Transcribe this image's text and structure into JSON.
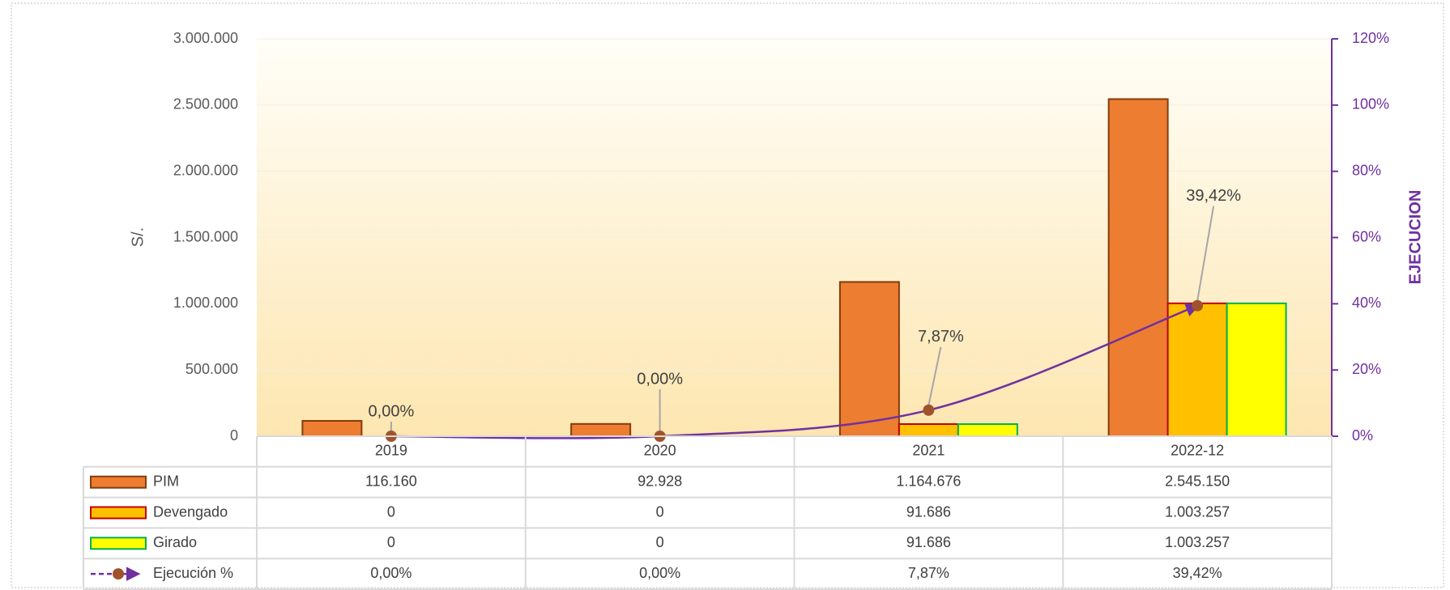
{
  "chart_data": {
    "type": "bar",
    "y_label": "S/.",
    "y2_label": "EJECUCION",
    "categories": [
      "2019",
      "2020",
      "2021",
      "2022-12"
    ],
    "series": [
      {
        "name": "PIM",
        "color": "#ed7d31",
        "edge": "#843c0c",
        "values": [
          116160,
          92928,
          1164676,
          2545150
        ],
        "value_labels": [
          "116.160",
          "92.928",
          "1.164.676",
          "2.545.150"
        ]
      },
      {
        "name": "Devengado",
        "color": "#ffc000",
        "edge": "#c00000",
        "values": [
          0,
          0,
          91686,
          1003257
        ],
        "value_labels": [
          "0",
          "0",
          "91.686",
          "1.003.257"
        ]
      },
      {
        "name": "Girado",
        "color": "#ffff00",
        "edge": "#00b050",
        "values": [
          0,
          0,
          91686,
          1003257
        ],
        "value_labels": [
          "0",
          "0",
          "91.686",
          "1.003.257"
        ]
      },
      {
        "name": "Ejecución %",
        "type": "line",
        "axis": "y2",
        "color": "#7030a0",
        "marker_color": "#a0522d",
        "values": [
          0,
          0,
          7.87,
          39.42
        ],
        "value_labels": [
          "0,00%",
          "0,00%",
          "7,87%",
          "39,42%"
        ]
      }
    ],
    "ylim": [
      0,
      3000000
    ],
    "yticks": [
      0,
      {
        "value": 500000,
        "label": "500.000"
      },
      {
        "value": 1000000,
        "label": "1.000.000"
      },
      {
        "value": 1500000,
        "label": "1.500.000"
      },
      {
        "value": 2000000,
        "label": "2.000.000"
      },
      {
        "value": 2500000,
        "label": "2.500.000"
      },
      {
        "value": 3000000,
        "label": "3.000.000"
      }
    ],
    "y2lim": [
      0,
      120
    ],
    "y2ticks": [
      {
        "value": 0,
        "label": "0%"
      },
      {
        "value": 20,
        "label": "20%"
      },
      {
        "value": 40,
        "label": "40%"
      },
      {
        "value": 60,
        "label": "60%"
      },
      {
        "value": 80,
        "label": "80%"
      },
      {
        "value": 100,
        "label": "100%"
      },
      {
        "value": 120,
        "label": "120%"
      }
    ],
    "grid": true,
    "data_table": true
  }
}
